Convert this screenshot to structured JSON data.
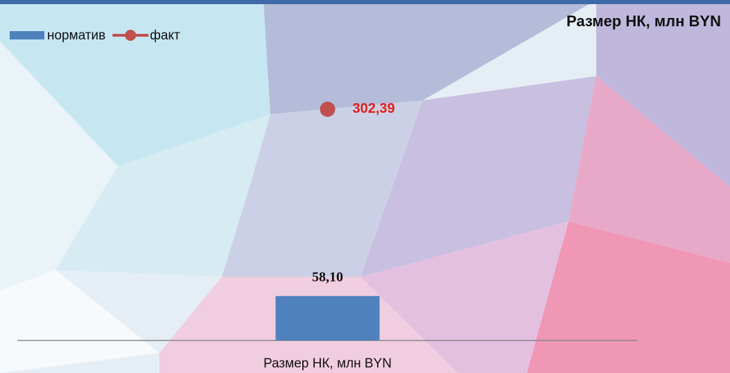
{
  "chart_data": {
    "type": "combo",
    "title": "Размер НК, млн BYN",
    "categories": [
      "Размер НК, млн BYN"
    ],
    "series": [
      {
        "name": "норматив",
        "type": "bar",
        "color": "#4f81bd",
        "values": [
          58.1
        ],
        "value_labels": [
          "58,10"
        ]
      },
      {
        "name": "факт",
        "type": "line",
        "color": "#c0504d",
        "values": [
          302.39
        ],
        "value_labels": [
          "302,39"
        ]
      }
    ],
    "ylim": [
      0,
      400
    ],
    "legend": "top-left"
  }
}
